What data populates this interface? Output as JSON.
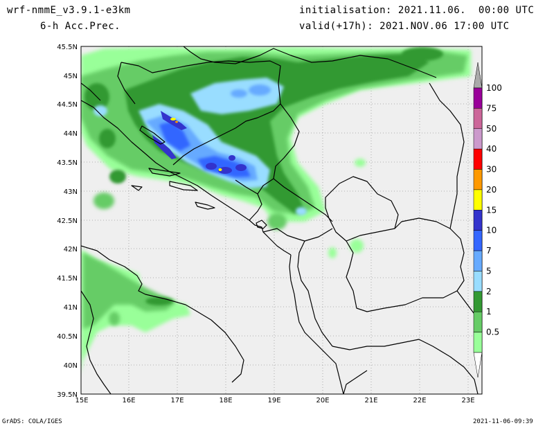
{
  "header": {
    "model": "wrf-nmmE_v3.9.1-e3km",
    "field": "6-h Acc.Prec.",
    "init": "initialisation: 2021.11.06.  00:00 UTC",
    "valid": "valid(+17h): 2021.NOV.06 17:00 UTC"
  },
  "footer": {
    "credit": "GrADS: COLA/IGES",
    "timestamp": "2021-11-06-09:39"
  },
  "map": {
    "lat_labels": [
      "45.5N",
      "45N",
      "44.5N",
      "44N",
      "43.5N",
      "43N",
      "42.5N",
      "42N",
      "41.5N",
      "41N",
      "40.5N",
      "40N",
      "39.5N"
    ],
    "lon_labels": [
      "15E",
      "16E",
      "17E",
      "18E",
      "19E",
      "20E",
      "21E",
      "22E",
      "23E"
    ],
    "colors": {
      "land": "#efefef",
      "border": "#000000"
    }
  },
  "colorbar": {
    "labels": [
      "100",
      "75",
      "50",
      "40",
      "30",
      "20",
      "15",
      "10",
      "7",
      "5",
      "2",
      "1",
      "0.5"
    ],
    "colors": [
      "#990099",
      "#cc6699",
      "#cc99cc",
      "#ff0000",
      "#ff9900",
      "#ffff00",
      "#3333cc",
      "#3366ff",
      "#66aaff",
      "#99ddff",
      "#339933",
      "#66cc66",
      "#99ff99"
    ],
    "top_color": "#aaaaaa"
  }
}
